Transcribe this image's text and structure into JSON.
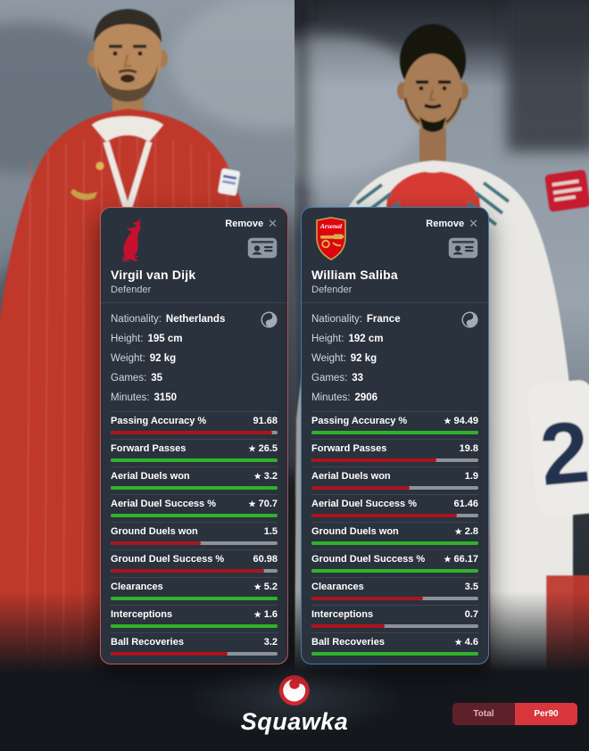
{
  "colors": {
    "card_bg": "#2a323e",
    "left_card_border": "#c4575e",
    "right_card_border": "#3d7db0",
    "bar_green": "#2fb32a",
    "bar_red": "#ab141d",
    "bar_track": "#8e939b",
    "toggle_active": "#d9353c",
    "toggle_inactive": "#5e2129",
    "liverpool_red": "#c8102e",
    "arsenal_red": "#dd0510",
    "squawka_red": "#d22630"
  },
  "icons": {
    "star": "★",
    "close": "✕"
  },
  "card_controls": {
    "remove_label": "Remove"
  },
  "photos": {
    "right": {
      "shirt_number": "2"
    }
  },
  "players": [
    {
      "name": "Virgil van Dijk",
      "position": "Defender",
      "crest_text": "LFC",
      "info": [
        {
          "label": "Nationality:",
          "value": "Netherlands"
        },
        {
          "label": "Height:",
          "value": "195 cm"
        },
        {
          "label": "Weight:",
          "value": "92 kg"
        },
        {
          "label": "Games:",
          "value": "35"
        },
        {
          "label": "Minutes:",
          "value": "3150"
        }
      ],
      "stats": [
        {
          "label": "Passing Accuracy %",
          "value": "91.68",
          "best": false,
          "fill": 97
        },
        {
          "label": "Forward Passes",
          "value": "26.5",
          "best": true,
          "fill": 100
        },
        {
          "label": "Aerial Duels won",
          "value": "3.2",
          "best": true,
          "fill": 100
        },
        {
          "label": "Aerial Duel Success %",
          "value": "70.7",
          "best": true,
          "fill": 100
        },
        {
          "label": "Ground Duels won",
          "value": "1.5",
          "best": false,
          "fill": 54
        },
        {
          "label": "Ground Duel Success %",
          "value": "60.98",
          "best": false,
          "fill": 92
        },
        {
          "label": "Clearances",
          "value": "5.2",
          "best": true,
          "fill": 100
        },
        {
          "label": "Interceptions",
          "value": "1.6",
          "best": true,
          "fill": 100
        },
        {
          "label": "Ball Recoveries",
          "value": "3.2",
          "best": false,
          "fill": 70
        }
      ]
    },
    {
      "name": "William Saliba",
      "position": "Defender",
      "crest_text": "Arsenal",
      "info": [
        {
          "label": "Nationality:",
          "value": "France"
        },
        {
          "label": "Height:",
          "value": "192 cm"
        },
        {
          "label": "Weight:",
          "value": "92 kg"
        },
        {
          "label": "Games:",
          "value": "33"
        },
        {
          "label": "Minutes:",
          "value": "2906"
        }
      ],
      "stats": [
        {
          "label": "Passing Accuracy %",
          "value": "94.49",
          "best": true,
          "fill": 100
        },
        {
          "label": "Forward Passes",
          "value": "19.8",
          "best": false,
          "fill": 75
        },
        {
          "label": "Aerial Duels won",
          "value": "1.9",
          "best": false,
          "fill": 59
        },
        {
          "label": "Aerial Duel Success %",
          "value": "61.46",
          "best": false,
          "fill": 87
        },
        {
          "label": "Ground Duels won",
          "value": "2.8",
          "best": true,
          "fill": 100
        },
        {
          "label": "Ground Duel Success %",
          "value": "66.17",
          "best": true,
          "fill": 100
        },
        {
          "label": "Clearances",
          "value": "3.5",
          "best": false,
          "fill": 67
        },
        {
          "label": "Interceptions",
          "value": "0.7",
          "best": false,
          "fill": 44
        },
        {
          "label": "Ball Recoveries",
          "value": "4.6",
          "best": true,
          "fill": 100
        }
      ]
    }
  ],
  "footer": {
    "brand": "Squawka",
    "toggle": [
      {
        "label": "Total",
        "active": false
      },
      {
        "label": "Per90",
        "active": true
      }
    ]
  }
}
